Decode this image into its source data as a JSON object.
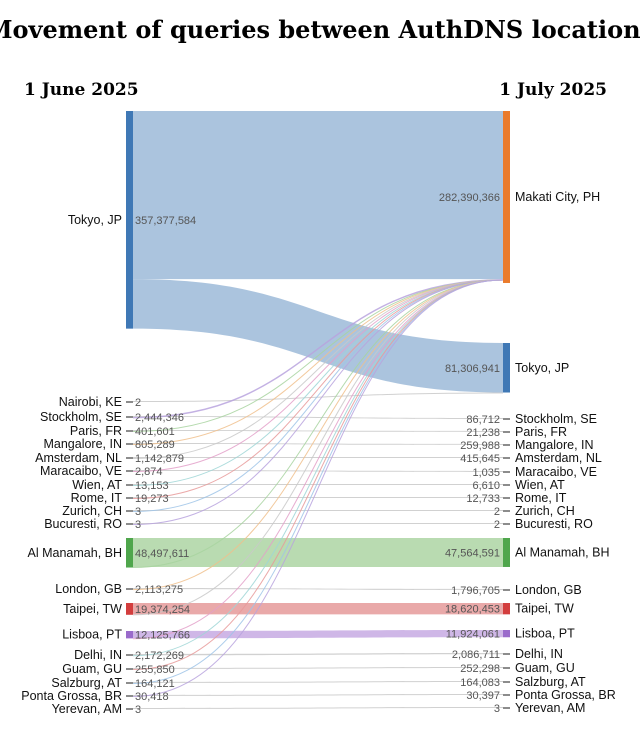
{
  "chart_data": {
    "type": "sankey",
    "title": "Movement of queries between AuthDNS locations",
    "left_header": "1 June 2025",
    "right_header": "1 July 2025",
    "colors": {
      "blue": "#3f78b5",
      "orange": "#ea7b2c",
      "green": "#4fa64c",
      "red": "#d33d3d",
      "purple": "#9a6bcb",
      "grey": "#8c8c8c",
      "band_blue": "#a7c1dc",
      "band_green": "#b5d9ad",
      "band_red": "#e8a4a4",
      "band_purple": "#ccb3e6",
      "band_grey": "#cfcfcf"
    },
    "left_nodes": [
      {
        "name": "Tokyo, JP",
        "value_label": "357,377,584",
        "value": 357377584,
        "color": "blue"
      },
      {
        "name": "Nairobi, KE",
        "value_label": "2",
        "value": 2,
        "color": "grey"
      },
      {
        "name": "Stockholm, SE",
        "value_label": "2,444,346",
        "value": 2444346,
        "color": "grey"
      },
      {
        "name": "Paris, FR",
        "value_label": "401,601",
        "value": 401601,
        "color": "grey"
      },
      {
        "name": "Mangalore, IN",
        "value_label": "805,289",
        "value": 805289,
        "color": "grey"
      },
      {
        "name": "Amsterdam, NL",
        "value_label": "1,142,879",
        "value": 1142879,
        "color": "grey"
      },
      {
        "name": "Maracaibo, VE",
        "value_label": "2,874",
        "value": 2874,
        "color": "grey"
      },
      {
        "name": "Wien, AT",
        "value_label": "13,153",
        "value": 13153,
        "color": "grey"
      },
      {
        "name": "Rome, IT",
        "value_label": "19,273",
        "value": 19273,
        "color": "grey"
      },
      {
        "name": "Zurich, CH",
        "value_label": "3",
        "value": 3,
        "color": "grey"
      },
      {
        "name": "Bucuresti, RO",
        "value_label": "3",
        "value": 3,
        "color": "grey"
      },
      {
        "name": "Al Manamah, BH",
        "value_label": "48,497,611",
        "value": 48497611,
        "color": "green"
      },
      {
        "name": "London, GB",
        "value_label": "2,113,275",
        "value": 2113275,
        "color": "grey"
      },
      {
        "name": "Taipei, TW",
        "value_label": "19,374,254",
        "value": 19374254,
        "color": "red"
      },
      {
        "name": "Lisboa, PT",
        "value_label": "12,125,766",
        "value": 12125766,
        "color": "purple"
      },
      {
        "name": "Delhi, IN",
        "value_label": "2,172,269",
        "value": 2172269,
        "color": "grey"
      },
      {
        "name": "Guam, GU",
        "value_label": "255,850",
        "value": 255850,
        "color": "grey"
      },
      {
        "name": "Salzburg, AT",
        "value_label": "164,121",
        "value": 164121,
        "color": "grey"
      },
      {
        "name": "Ponta Grossa, BR",
        "value_label": "30,418",
        "value": 30418,
        "color": "grey"
      },
      {
        "name": "Yerevan, AM",
        "value_label": "3",
        "value": 3,
        "color": "grey"
      }
    ],
    "right_nodes": [
      {
        "name": "Makati City, PH",
        "value_label": "282,390,366",
        "value": 282390366,
        "color": "orange"
      },
      {
        "name": "Tokyo, JP",
        "value_label": "81,306,941",
        "value": 81306941,
        "color": "blue"
      },
      {
        "name": "Stockholm, SE",
        "value_label": "86,712",
        "value": 86712,
        "color": "grey"
      },
      {
        "name": "Paris, FR",
        "value_label": "21,238",
        "value": 21238,
        "color": "grey"
      },
      {
        "name": "Mangalore, IN",
        "value_label": "259,988",
        "value": 259988,
        "color": "grey"
      },
      {
        "name": "Amsterdam, NL",
        "value_label": "415,645",
        "value": 415645,
        "color": "grey"
      },
      {
        "name": "Maracaibo, VE",
        "value_label": "1,035",
        "value": 1035,
        "color": "grey"
      },
      {
        "name": "Wien, AT",
        "value_label": "6,610",
        "value": 6610,
        "color": "grey"
      },
      {
        "name": "Rome, IT",
        "value_label": "12,733",
        "value": 12733,
        "color": "grey"
      },
      {
        "name": "Zurich, CH",
        "value_label": "2",
        "value": 2,
        "color": "grey"
      },
      {
        "name": "Bucuresti, RO",
        "value_label": "2",
        "value": 2,
        "color": "grey"
      },
      {
        "name": "Al Manamah, BH",
        "value_label": "47,564,591",
        "value": 47564591,
        "color": "green"
      },
      {
        "name": "London, GB",
        "value_label": "1,796,705",
        "value": 1796705,
        "color": "grey"
      },
      {
        "name": "Taipei, TW",
        "value_label": "18,620,453",
        "value": 18620453,
        "color": "red"
      },
      {
        "name": "Lisboa, PT",
        "value_label": "11,924,061",
        "value": 11924061,
        "color": "purple"
      },
      {
        "name": "Delhi, IN",
        "value_label": "2,086,711",
        "value": 2086711,
        "color": "grey"
      },
      {
        "name": "Guam, GU",
        "value_label": "252,298",
        "value": 252298,
        "color": "grey"
      },
      {
        "name": "Salzburg, AT",
        "value_label": "164,083",
        "value": 164083,
        "color": "grey"
      },
      {
        "name": "Ponta Grossa, BR",
        "value_label": "30,397",
        "value": 30397,
        "color": "grey"
      },
      {
        "name": "Yerevan, AM",
        "value_label": "3",
        "value": 3,
        "color": "grey"
      }
    ],
    "flows_note": "Each origin sends its retained queries to the same-named destination; the remainder flows to Makati City, PH."
  }
}
